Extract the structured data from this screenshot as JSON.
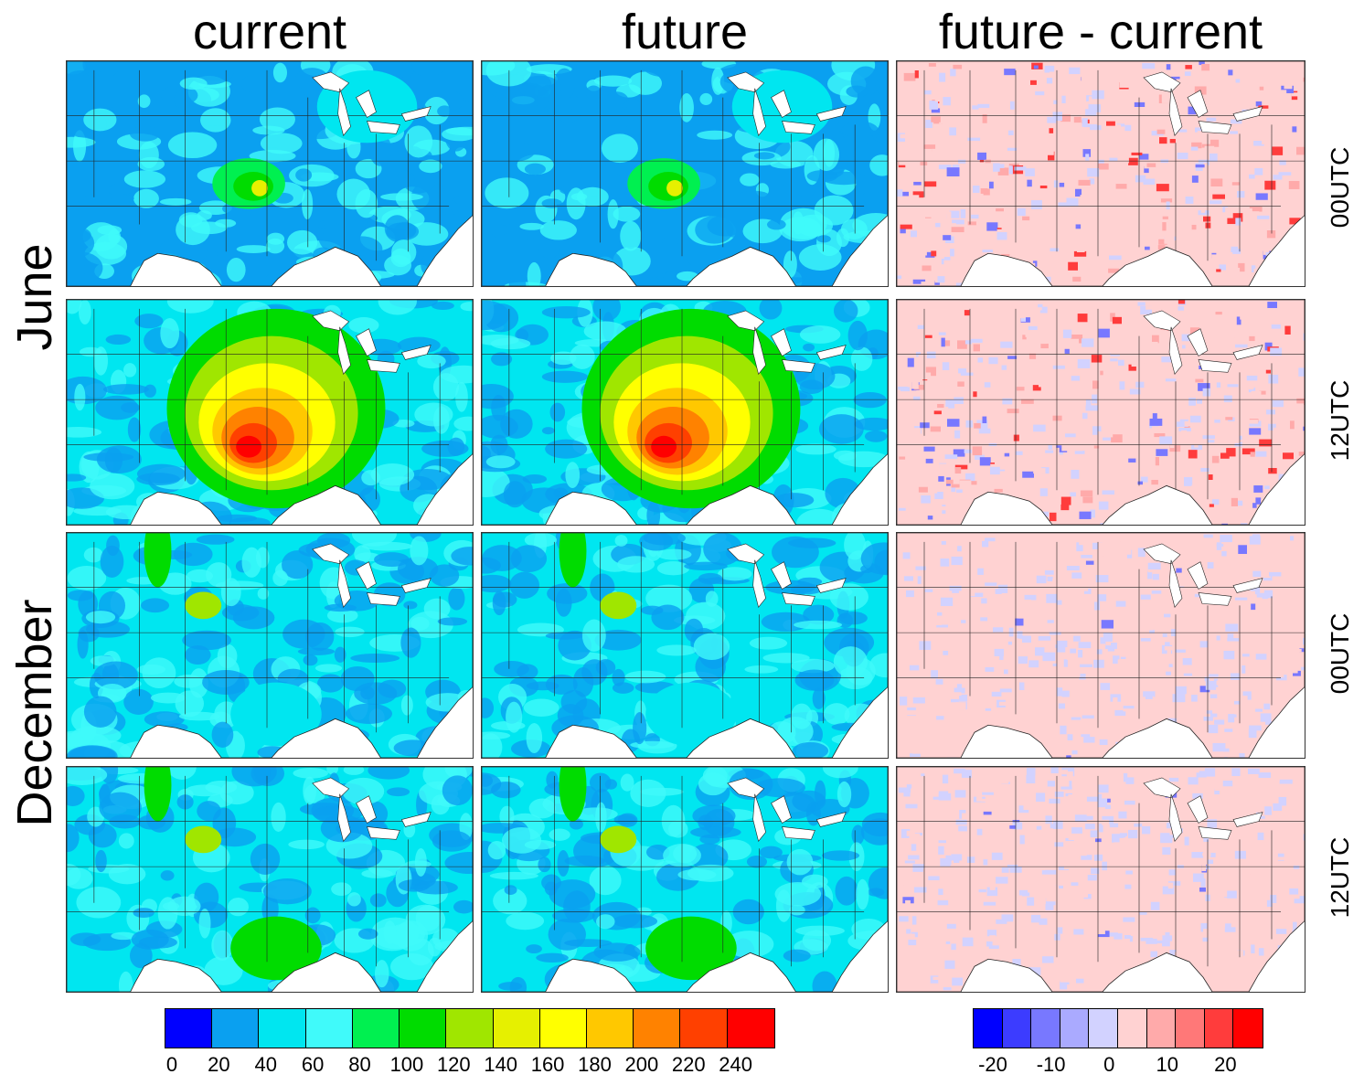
{
  "columns": [
    {
      "title": "current",
      "key": "current"
    },
    {
      "title": "future",
      "key": "future"
    },
    {
      "title": "future - current",
      "key": "diff"
    }
  ],
  "month_labels": [
    "June",
    "December"
  ],
  "panel_rows": [
    {
      "month": "June",
      "time": "00UTC"
    },
    {
      "month": "June",
      "time": "12UTC"
    },
    {
      "month": "December",
      "time": "00UTC"
    },
    {
      "month": "December",
      "time": "12UTC"
    }
  ],
  "colorbar_main": {
    "colors": [
      "#0000ff",
      "#0aa0f0",
      "#00e6f0",
      "#40fafa",
      "#00f050",
      "#00dc00",
      "#a0e600",
      "#e6f000",
      "#ffff00",
      "#ffc800",
      "#ff8200",
      "#ff4000",
      "#ff0000"
    ],
    "ticks": [
      "0",
      "20",
      "40",
      "60",
      "80",
      "100",
      "120",
      "140",
      "160",
      "180",
      "200",
      "220",
      "240"
    ]
  },
  "colorbar_diff": {
    "colors": [
      "#0000ff",
      "#3c3cff",
      "#7878ff",
      "#aaaaff",
      "#d2d2ff",
      "#ffd2d2",
      "#ffaaaa",
      "#ff7878",
      "#ff3c3c",
      "#ff0000"
    ],
    "ticks": [
      "-20",
      "-10",
      "0",
      "10",
      "20"
    ]
  }
}
